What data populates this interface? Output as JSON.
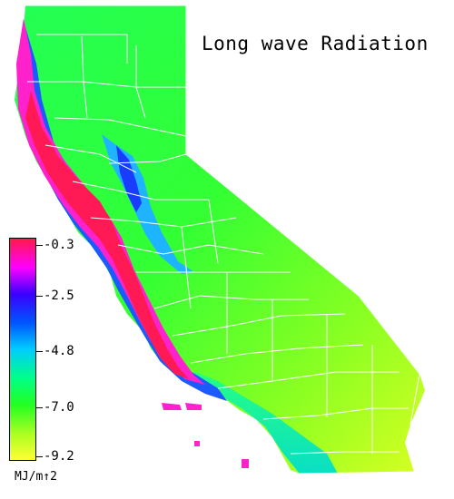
{
  "title": "Long wave Radiation",
  "legend": {
    "unit": "MJ/m↑2",
    "ticks": [
      "-0.3",
      "-2.5",
      "-4.8",
      "-7.0",
      "-9.2"
    ],
    "colors": [
      "#ff1a4a",
      "#ff00ff",
      "#3a00ff",
      "#0055ff",
      "#00ccff",
      "#00ff88",
      "#22ff22",
      "#aaff22",
      "#ffff33"
    ]
  },
  "map": {
    "region": "California",
    "boundary_color": "#ffffff"
  }
}
